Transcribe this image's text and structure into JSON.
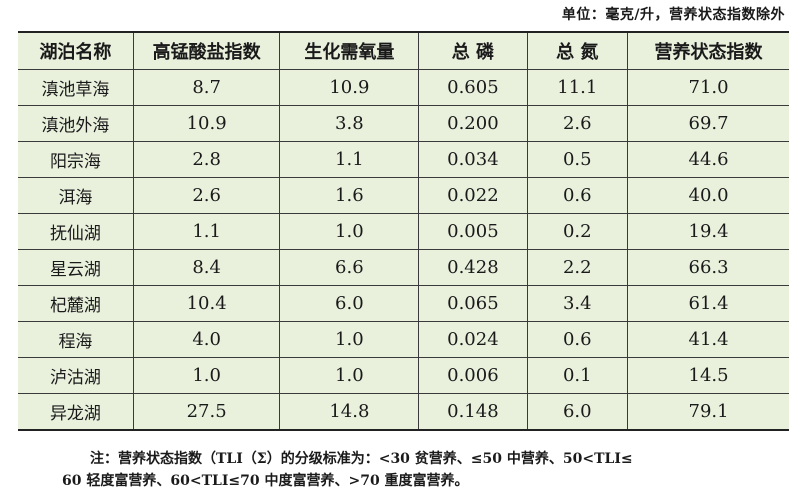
{
  "unit_note": "单位：毫克/升，营养状态指数除外",
  "table": {
    "headers": [
      "湖泊名称",
      "高锰酸盐指数",
      "生化需氧量",
      "总  磷",
      "总  氮",
      "营养状态指数"
    ],
    "rows": [
      [
        "滇池草海",
        "8.7",
        "10.9",
        "0.605",
        "11.1",
        "71.0"
      ],
      [
        "滇池外海",
        "10.9",
        "3.8",
        "0.200",
        "2.6",
        "69.7"
      ],
      [
        "阳宗海",
        "2.8",
        "1.1",
        "0.034",
        "0.5",
        "44.6"
      ],
      [
        "洱海",
        "2.6",
        "1.6",
        "0.022",
        "0.6",
        "40.0"
      ],
      [
        "抚仙湖",
        "1.1",
        "1.0",
        "0.005",
        "0.2",
        "19.4"
      ],
      [
        "星云湖",
        "8.4",
        "6.6",
        "0.428",
        "2.2",
        "66.3"
      ],
      [
        "杞麓湖",
        "10.4",
        "6.0",
        "0.065",
        "3.4",
        "61.4"
      ],
      [
        "程海",
        "4.0",
        "1.0",
        "0.024",
        "0.6",
        "41.4"
      ],
      [
        "泸沽湖",
        "1.0",
        "1.0",
        "0.006",
        "0.1",
        "14.5"
      ],
      [
        "异龙湖",
        "27.5",
        "14.8",
        "0.148",
        "6.0",
        "79.1"
      ]
    ]
  },
  "footnote": {
    "line1": "注：营养状态指数（TLI（Σ）的分级标准为：<30 贫营养、≤50 中营养、50<TLI≤",
    "line2": "60 轻度富营养、60<TLI≤70 中度富营养、>70 重度富营养。"
  },
  "colors": {
    "table_background": "#e9f1dd",
    "border": "#3a3a3a",
    "text": "#1a1a1a"
  }
}
